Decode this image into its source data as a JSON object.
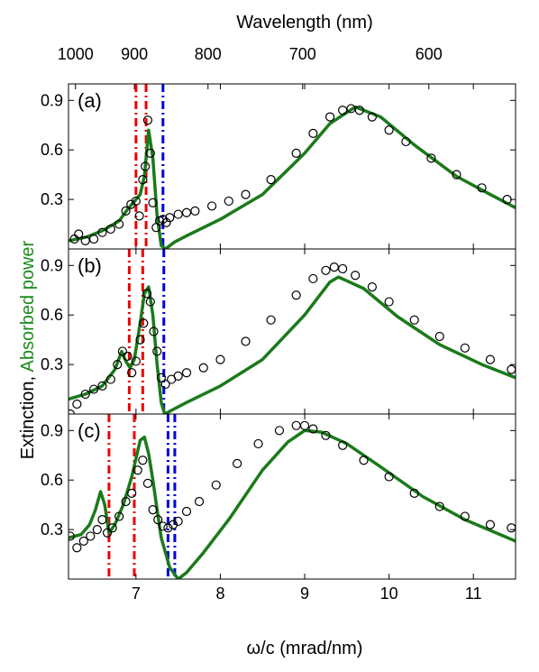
{
  "colors": {
    "model": "#1a7a1a",
    "experiment": "#000000",
    "red_marker": "#ee0000",
    "blue_marker": "#0000dd",
    "ylabel_green": "#1a8a1a"
  },
  "labels": {
    "top_axis_title": "Wavelength (nm)",
    "x_axis_title": "ω/c (mrad/nm)",
    "y_axis_title_prefix": "Extinction, ",
    "y_axis_title_green": "Absorbed power"
  },
  "chart_data": {
    "type": "line",
    "x_range": [
      6.2,
      11.5
    ],
    "y_range": [
      0,
      1.0
    ],
    "x_ticks": [
      7,
      8,
      9,
      10,
      11
    ],
    "x_tick_labels": [
      "7",
      "8",
      "9",
      "10",
      "11"
    ],
    "top_ticks": [
      {
        "label": "1000",
        "omega": 6.283
      },
      {
        "label": "900",
        "omega": 6.981
      },
      {
        "label": "800",
        "omega": 7.854
      },
      {
        "label": "700",
        "omega": 8.976
      },
      {
        "label": "600",
        "omega": 10.472
      }
    ],
    "y_ticks": [
      0.3,
      0.6,
      0.9
    ],
    "y_tick_labels": [
      "0.3",
      "0.6",
      "0.9"
    ],
    "panels": [
      {
        "label": "(a)",
        "red_lines": [
          7.0,
          7.12
        ],
        "blue_lines": [
          7.32
        ],
        "model": {
          "x": [
            6.2,
            6.4,
            6.6,
            6.8,
            6.9,
            7.0,
            7.05,
            7.1,
            7.15,
            7.2,
            7.25,
            7.3,
            7.35,
            7.45,
            7.6,
            8.0,
            8.5,
            9.0,
            9.3,
            9.6,
            9.9,
            10.3,
            10.8,
            11.2,
            11.5
          ],
          "y": [
            0.05,
            0.07,
            0.11,
            0.17,
            0.24,
            0.3,
            0.33,
            0.44,
            0.72,
            0.55,
            0.2,
            0.02,
            0.0,
            0.04,
            0.08,
            0.18,
            0.33,
            0.58,
            0.76,
            0.86,
            0.8,
            0.63,
            0.44,
            0.33,
            0.25
          ]
        },
        "experiment": {
          "x": [
            6.27,
            6.32,
            6.4,
            6.5,
            6.6,
            6.7,
            6.8,
            6.88,
            6.94,
            7.0,
            7.04,
            7.08,
            7.11,
            7.14,
            7.17,
            7.2,
            7.24,
            7.28,
            7.32,
            7.36,
            7.4,
            7.5,
            7.6,
            7.7,
            7.9,
            8.1,
            8.3,
            8.6,
            8.9,
            9.1,
            9.3,
            9.45,
            9.55,
            9.65,
            9.8,
            10.0,
            10.2,
            10.5,
            10.8,
            11.1,
            11.4
          ],
          "y": [
            0.06,
            0.09,
            0.05,
            0.06,
            0.1,
            0.12,
            0.15,
            0.23,
            0.27,
            0.29,
            0.2,
            0.42,
            0.5,
            0.78,
            0.58,
            0.28,
            0.13,
            0.17,
            0.18,
            0.16,
            0.19,
            0.21,
            0.22,
            0.23,
            0.26,
            0.29,
            0.33,
            0.42,
            0.58,
            0.7,
            0.8,
            0.84,
            0.85,
            0.84,
            0.8,
            0.72,
            0.65,
            0.55,
            0.45,
            0.37,
            0.3
          ]
        }
      },
      {
        "label": "(b)",
        "red_lines": [
          6.92,
          7.08
        ],
        "blue_lines": [
          7.33
        ],
        "model": {
          "x": [
            6.2,
            6.4,
            6.6,
            6.75,
            6.83,
            6.88,
            6.93,
            6.98,
            7.05,
            7.1,
            7.15,
            7.2,
            7.25,
            7.3,
            7.34,
            7.45,
            7.6,
            8.0,
            8.5,
            9.0,
            9.3,
            9.4,
            9.7,
            10.1,
            10.6,
            11.1,
            11.5
          ],
          "y": [
            0.09,
            0.12,
            0.17,
            0.27,
            0.38,
            0.32,
            0.28,
            0.33,
            0.55,
            0.73,
            0.77,
            0.6,
            0.3,
            0.07,
            0.0,
            0.03,
            0.07,
            0.17,
            0.33,
            0.6,
            0.8,
            0.83,
            0.76,
            0.59,
            0.42,
            0.3,
            0.22
          ]
        },
        "experiment": {
          "x": [
            6.22,
            6.3,
            6.4,
            6.5,
            6.6,
            6.7,
            6.78,
            6.84,
            6.9,
            6.95,
            7.0,
            7.05,
            7.09,
            7.13,
            7.17,
            7.21,
            7.25,
            7.3,
            7.35,
            7.42,
            7.5,
            7.6,
            7.8,
            8.0,
            8.3,
            8.6,
            8.9,
            9.1,
            9.25,
            9.35,
            9.45,
            9.6,
            9.8,
            10.0,
            10.3,
            10.6,
            10.9,
            11.2,
            11.45
          ],
          "y": [
            0.0,
            0.06,
            0.12,
            0.15,
            0.17,
            0.21,
            0.3,
            0.38,
            0.35,
            0.25,
            0.32,
            0.45,
            0.55,
            0.73,
            0.68,
            0.5,
            0.38,
            0.22,
            0.18,
            0.21,
            0.23,
            0.25,
            0.28,
            0.33,
            0.44,
            0.57,
            0.72,
            0.82,
            0.87,
            0.89,
            0.88,
            0.84,
            0.77,
            0.68,
            0.57,
            0.47,
            0.4,
            0.33,
            0.27
          ]
        }
      },
      {
        "label": "(c)",
        "red_lines": [
          6.68,
          6.98
        ],
        "blue_lines": [
          7.38,
          7.46
        ],
        "model": {
          "x": [
            6.2,
            6.35,
            6.45,
            6.52,
            6.58,
            6.63,
            6.68,
            6.75,
            6.85,
            6.95,
            7.05,
            7.1,
            7.15,
            7.2,
            7.25,
            7.3,
            7.4,
            7.5,
            7.6,
            7.8,
            8.1,
            8.5,
            8.8,
            9.0,
            9.2,
            9.5,
            9.9,
            10.4,
            10.9,
            11.5
          ],
          "y": [
            0.25,
            0.27,
            0.33,
            0.42,
            0.53,
            0.45,
            0.28,
            0.33,
            0.45,
            0.62,
            0.84,
            0.86,
            0.76,
            0.6,
            0.42,
            0.25,
            0.07,
            0.0,
            0.04,
            0.16,
            0.36,
            0.66,
            0.83,
            0.9,
            0.89,
            0.82,
            0.68,
            0.5,
            0.36,
            0.23
          ]
        },
        "experiment": {
          "x": [
            6.22,
            6.3,
            6.38,
            6.46,
            6.54,
            6.6,
            6.66,
            6.72,
            6.8,
            6.88,
            6.95,
            7.02,
            7.08,
            7.14,
            7.2,
            7.26,
            7.32,
            7.38,
            7.44,
            7.5,
            7.6,
            7.75,
            7.95,
            8.2,
            8.45,
            8.7,
            8.9,
            9.0,
            9.1,
            9.25,
            9.45,
            9.7,
            10.0,
            10.3,
            10.6,
            10.9,
            11.2,
            11.45
          ],
          "y": [
            0.26,
            0.19,
            0.23,
            0.26,
            0.3,
            0.36,
            0.28,
            0.31,
            0.38,
            0.47,
            0.52,
            0.66,
            0.72,
            0.58,
            0.42,
            0.36,
            0.32,
            0.31,
            0.33,
            0.35,
            0.41,
            0.47,
            0.57,
            0.7,
            0.82,
            0.9,
            0.93,
            0.93,
            0.91,
            0.87,
            0.81,
            0.72,
            0.62,
            0.52,
            0.44,
            0.38,
            0.33,
            0.31
          ]
        }
      }
    ]
  }
}
